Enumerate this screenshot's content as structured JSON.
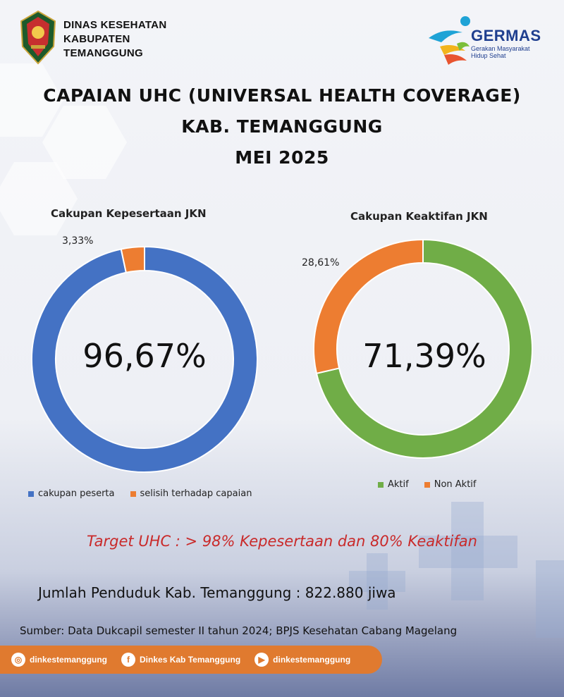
{
  "header": {
    "org_lines": [
      "DINAS KESEHATAN",
      "KABUPATEN",
      "TEMANGGUNG"
    ],
    "germas_word": "GERMAS",
    "germas_tagline": [
      "Gerakan Masyarakat",
      "Hidup Sehat"
    ]
  },
  "title": {
    "line1": "CAPAIAN UHC (UNIVERSAL HEALTH COVERAGE)",
    "line2": "KAB. TEMANGGUNG",
    "line3": "MEI 2025"
  },
  "chart_data": [
    {
      "type": "pie",
      "style": "donut",
      "title": "Cakupan Kepesertaan JKN",
      "categories": [
        "cakupan peserta",
        "selisih terhadap capaian"
      ],
      "values": [
        96.67,
        3.33
      ],
      "colors": [
        "#4472c4",
        "#ed7d31"
      ],
      "center_label": "96,67%",
      "slice_label": "3,33%",
      "legend": [
        "cakupan peserta",
        "selisih terhadap capaian"
      ],
      "legend_position": "bottom"
    },
    {
      "type": "pie",
      "style": "donut",
      "title": "Cakupan Keaktifan JKN",
      "categories": [
        "Aktif",
        "Non Aktif"
      ],
      "values": [
        71.39,
        28.61
      ],
      "colors": [
        "#70ad47",
        "#ed7d31"
      ],
      "center_label": "71,39%",
      "slice_label": "28,61%",
      "legend": [
        "Aktif",
        "Non Aktif"
      ],
      "legend_position": "bottom"
    }
  ],
  "target_text": "Target UHC :  > 98% Kepesertaan dan 80% Keaktifan",
  "population_text": "Jumlah Penduduk Kab. Temanggung : 822.880 jiwa",
  "source_text": "Sumber: Data Dukcapil semester II tahun 2024; BPJS Kesehatan Cabang Magelang",
  "footer": {
    "instagram": "dinkestemanggung",
    "facebook": "Dinkes Kab Temanggung",
    "youtube": "dinkestemanggung",
    "icons": [
      "instagram-icon",
      "facebook-icon",
      "youtube-icon"
    ],
    "color": "#e07a2f"
  }
}
